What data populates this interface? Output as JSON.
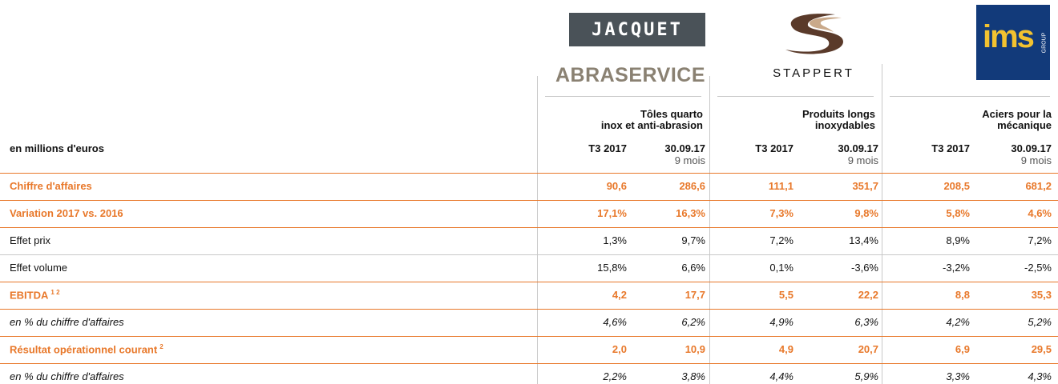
{
  "logos": {
    "jacquet": "JACQUET",
    "abraservice": "ABRASERVICE",
    "stappert": "STAPPERT",
    "ims": "ims",
    "ims_group": "GROUP"
  },
  "table": {
    "unit_label": "en millions d'euros",
    "groups": [
      {
        "title": [
          "Tôles quarto",
          "inox et anti-abrasion"
        ],
        "columns": [
          {
            "label": "T3 2017"
          },
          {
            "label": "30.09.17",
            "sub": "9 mois"
          }
        ]
      },
      {
        "title": [
          "Produits longs",
          "inoxydables"
        ],
        "columns": [
          {
            "label": "T3 2017"
          },
          {
            "label": "30.09.17",
            "sub": "9 mois"
          }
        ]
      },
      {
        "title": [
          "Aciers pour la",
          "mécanique"
        ],
        "columns": [
          {
            "label": "T3 2017"
          },
          {
            "label": "30.09.17",
            "sub": "9 mois"
          }
        ]
      }
    ],
    "highlight_color": "#e8782a",
    "rows": [
      {
        "label": "Chiffre d'affaires",
        "style": "highlight",
        "values": [
          "90,6",
          "286,6",
          "111,1",
          "351,7",
          "208,5",
          "681,2"
        ]
      },
      {
        "label": "Variation 2017 vs. 2016",
        "style": "highlight",
        "values": [
          "17,1%",
          "16,3%",
          "7,3%",
          "9,8%",
          "5,8%",
          "4,6%"
        ]
      },
      {
        "label": "Effet prix",
        "style": "normal",
        "values": [
          "1,3%",
          "9,7%",
          "7,2%",
          "13,4%",
          "8,9%",
          "7,2%"
        ]
      },
      {
        "label": "Effet volume",
        "style": "normal",
        "values": [
          "15,8%",
          "6,6%",
          "0,1%",
          "-3,6%",
          "-3,2%",
          "-2,5%"
        ]
      },
      {
        "label": "EBITDA",
        "sup": "1 2",
        "style": "highlight",
        "values": [
          "4,2",
          "17,7",
          "5,5",
          "22,2",
          "8,8",
          "35,3"
        ]
      },
      {
        "label": "en % du chiffre d'affaires",
        "style": "italic",
        "values": [
          "4,6%",
          "6,2%",
          "4,9%",
          "6,3%",
          "4,2%",
          "5,2%"
        ]
      },
      {
        "label": "Résultat opérationnel courant",
        "sup": "2",
        "style": "highlight",
        "values": [
          "2,0",
          "10,9",
          "4,9",
          "20,7",
          "6,9",
          "29,5"
        ]
      },
      {
        "label": "en % du chiffre d'affaires",
        "style": "italic",
        "values": [
          "2,2%",
          "3,8%",
          "4,4%",
          "5,9%",
          "3,3%",
          "4,3%"
        ]
      }
    ]
  }
}
